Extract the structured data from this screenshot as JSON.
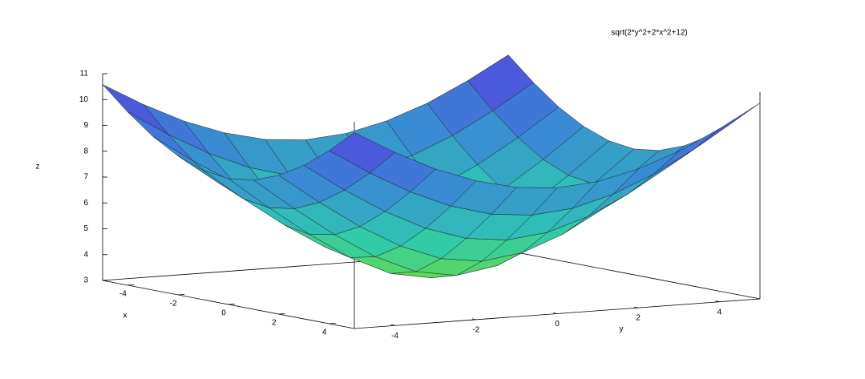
{
  "chart_data": {
    "type": "surface",
    "title": "sqrt(2*y^2+2*x^2+12)",
    "x_label": "x",
    "y_label": "y",
    "z_label": "z",
    "x": [
      -5,
      -4,
      -3,
      -2,
      -1,
      0,
      1,
      2,
      3,
      4,
      5
    ],
    "y": [
      -5,
      -4,
      -3,
      -2,
      -1,
      0,
      1,
      2,
      3,
      4,
      5
    ],
    "z": [
      [
        10.58,
        9.7,
        8.94,
        8.37,
        8,
        7.87,
        8,
        8.37,
        8.94,
        9.7,
        10.58
      ],
      [
        9.7,
        8.72,
        7.87,
        7.21,
        6.78,
        6.63,
        6.78,
        7.21,
        7.87,
        8.72,
        9.7
      ],
      [
        8.94,
        7.87,
        6.93,
        6.16,
        5.66,
        5.48,
        5.66,
        6.16,
        6.93,
        7.87,
        8.94
      ],
      [
        8.37,
        7.21,
        6.16,
        5.29,
        4.69,
        4.47,
        4.69,
        5.29,
        6.16,
        7.21,
        8.37
      ],
      [
        8,
        6.78,
        5.66,
        4.69,
        4,
        3.74,
        4,
        4.69,
        5.66,
        6.78,
        8
      ],
      [
        7.87,
        6.63,
        5.48,
        4.47,
        3.74,
        3.46,
        3.74,
        4.47,
        5.48,
        6.63,
        7.87
      ],
      [
        8,
        6.78,
        5.66,
        4.69,
        4,
        3.74,
        4,
        4.69,
        5.66,
        6.78,
        8
      ],
      [
        8.37,
        7.21,
        6.16,
        5.29,
        4.69,
        4.47,
        4.69,
        5.29,
        6.16,
        7.21,
        8.37
      ],
      [
        8.94,
        7.87,
        6.93,
        6.16,
        5.66,
        5.48,
        5.66,
        6.16,
        6.93,
        7.87,
        8.94
      ],
      [
        9.7,
        8.72,
        7.87,
        7.21,
        6.78,
        6.63,
        6.78,
        7.21,
        7.87,
        8.72,
        9.7
      ],
      [
        10.58,
        9.7,
        8.94,
        8.37,
        8,
        7.87,
        8,
        8.37,
        8.94,
        9.7,
        10.58
      ]
    ],
    "xlim": [
      -5,
      5
    ],
    "ylim": [
      -5,
      5
    ],
    "zlim": [
      3,
      11
    ],
    "xticks": [
      -4,
      -2,
      0,
      2,
      4
    ],
    "yticks": [
      -4,
      -2,
      0,
      2,
      4
    ],
    "zticks": [
      3,
      4,
      5,
      6,
      7,
      8,
      9,
      10,
      11
    ],
    "colormap": [
      "#6fe03a",
      "#2ec9b0",
      "#3a86d6",
      "#5a2ee0"
    ]
  }
}
